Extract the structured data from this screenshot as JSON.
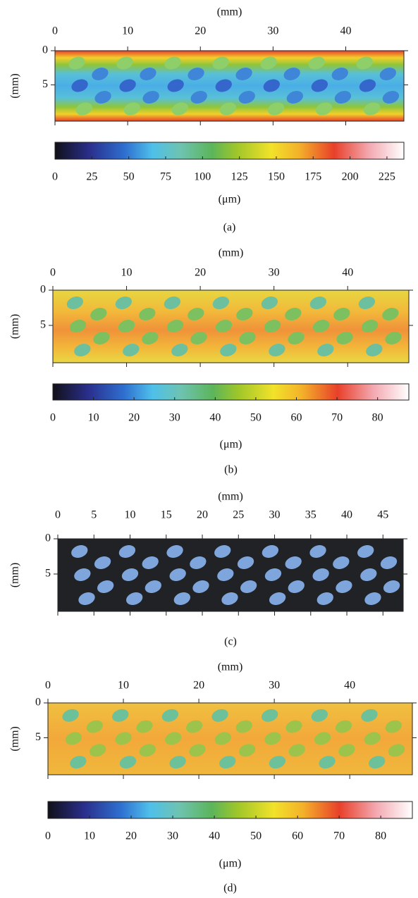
{
  "panels": [
    {
      "x_label": "(mm)",
      "y_label": "(mm)",
      "xlim": [
        0,
        48
      ],
      "xticks": [
        0,
        10,
        20,
        30,
        40
      ],
      "ylim": [
        0,
        10.3
      ],
      "yticks": [
        0,
        5
      ],
      "colorbar": {
        "lim": [
          0,
          236.5
        ],
        "ticks": [
          0,
          25,
          50,
          75,
          100,
          125,
          150,
          175,
          200,
          225
        ],
        "label": "(μm)"
      },
      "caption": "(a)"
    },
    {
      "x_label": "(mm)",
      "y_label": "(mm)",
      "xlim": [
        0,
        48.3
      ],
      "xticks": [
        0,
        10,
        20,
        30,
        40
      ],
      "ylim": [
        0,
        10.3
      ],
      "yticks": [
        0,
        5
      ],
      "colorbar": {
        "lim": [
          0,
          87.7
        ],
        "ticks": [
          0,
          10,
          20,
          30,
          40,
          50,
          60,
          70,
          80
        ],
        "label": "(μm)"
      },
      "caption": "(b)"
    },
    {
      "x_label": "(mm)",
      "y_label": "(mm)",
      "xlim": [
        0,
        47.8
      ],
      "xticks": [
        0,
        5,
        10,
        15,
        20,
        25,
        30,
        35,
        40,
        45
      ],
      "ylim": [
        0,
        10.3
      ],
      "yticks": [
        0,
        5
      ],
      "caption": "(c)"
    },
    {
      "x_label": "(mm)",
      "y_label": "(mm)",
      "xlim": [
        0,
        48.3
      ],
      "xticks": [
        0,
        10,
        20,
        30,
        40
      ],
      "ylim": [
        0,
        10.3
      ],
      "yticks": [
        0,
        5
      ],
      "colorbar": {
        "lim": [
          0,
          87.6
        ],
        "ticks": [
          0,
          10,
          20,
          30,
          40,
          50,
          60,
          70,
          80
        ],
        "label": "(μm)"
      },
      "caption": "(d)"
    }
  ]
}
